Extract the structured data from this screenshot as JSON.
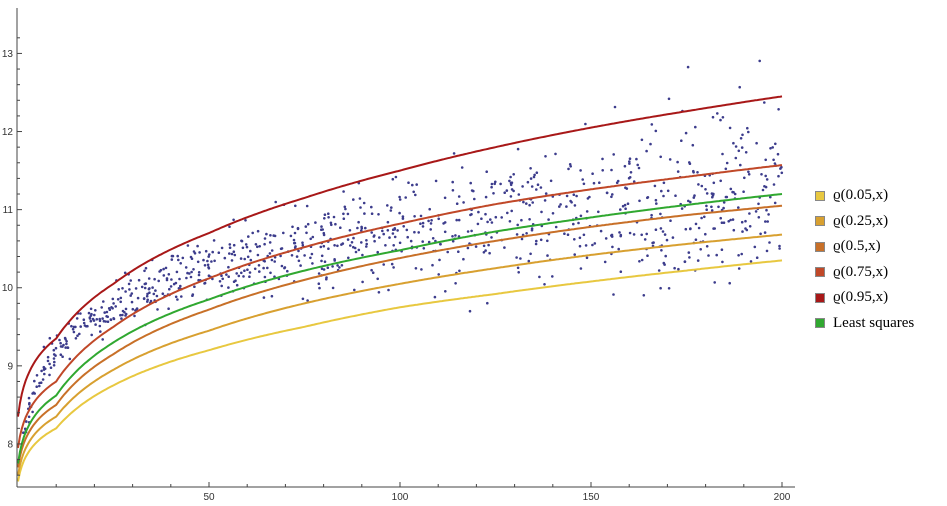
{
  "chart_data": {
    "type": "scatter",
    "title": "",
    "xlabel": "",
    "ylabel": "",
    "xlim": [
      0,
      200
    ],
    "ylim": [
      7.5,
      13.3
    ],
    "x_ticks": [
      50,
      100,
      150,
      200
    ],
    "y_ticks": [
      8,
      9,
      10,
      11,
      12,
      13
    ],
    "grid": false,
    "legend_position": "right",
    "point_color": "#3c3c8c",
    "scatter_points_approx": {
      "count": 1000,
      "x_range": [
        1,
        200
      ],
      "trend": "y ≈ 7.5 + 0.69·log(1+x) with spread growing along x",
      "min_y": 7.65,
      "max_y": 13.2
    },
    "series": [
      {
        "name": "ϱ(0.05,x)",
        "color": "#e8c840",
        "x": [
          0,
          10,
          25,
          50,
          75,
          100,
          125,
          150,
          175,
          200
        ],
        "y": [
          7.52,
          8.2,
          8.75,
          9.2,
          9.5,
          9.75,
          9.92,
          10.08,
          10.22,
          10.35
        ]
      },
      {
        "name": "ϱ(0.25,x)",
        "color": "#d8a030",
        "x": [
          0,
          10,
          25,
          50,
          75,
          100,
          125,
          150,
          175,
          200
        ],
        "y": [
          7.6,
          8.35,
          8.95,
          9.45,
          9.8,
          10.05,
          10.25,
          10.42,
          10.56,
          10.68
        ]
      },
      {
        "name": "ϱ(0.5,x)",
        "color": "#c87028",
        "x": [
          0,
          10,
          25,
          50,
          75,
          100,
          125,
          150,
          175,
          200
        ],
        "y": [
          7.7,
          8.5,
          9.15,
          9.72,
          10.1,
          10.38,
          10.6,
          10.78,
          10.93,
          11.05
        ]
      },
      {
        "name": "ϱ(0.75,x)",
        "color": "#c04828",
        "x": [
          0,
          10,
          25,
          50,
          75,
          100,
          125,
          150,
          175,
          200
        ],
        "y": [
          7.95,
          8.8,
          9.5,
          10.12,
          10.52,
          10.82,
          11.07,
          11.26,
          11.42,
          11.57
        ]
      },
      {
        "name": "ϱ(0.95,x)",
        "color": "#a81818",
        "x": [
          0,
          10,
          25,
          50,
          75,
          100,
          125,
          150,
          175,
          200
        ],
        "y": [
          8.35,
          9.35,
          10.05,
          10.7,
          11.15,
          11.5,
          11.8,
          12.05,
          12.26,
          12.45
        ]
      },
      {
        "name": "Least squares",
        "color": "#30a830",
        "x": [
          0,
          10,
          25,
          50,
          75,
          100,
          125,
          150,
          175,
          200
        ],
        "y": [
          7.75,
          8.62,
          9.3,
          9.85,
          10.22,
          10.48,
          10.72,
          10.9,
          11.06,
          11.2
        ]
      }
    ]
  }
}
